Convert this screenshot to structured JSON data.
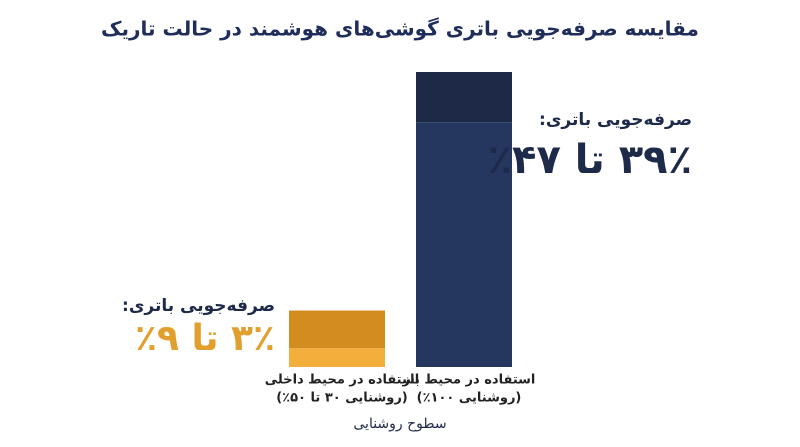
{
  "chart_data": {
    "type": "range-bar",
    "title": "مقایسه صرفه‌جویی باتری گوشی‌های هوشمند در حالت تاریک",
    "x_label": "سطوح روشنایی",
    "categories": [
      "استفاده در محیط داخلی",
      "استفاده در محیط باز"
    ],
    "category_notes": [
      "(روشنایی ۳۰ تا ۵۰٪)",
      "(روشنایی ۱۰۰٪)"
    ],
    "low": [
      3,
      39
    ],
    "high": [
      9,
      47
    ],
    "range_labels": [
      "۳٪ تا ۹٪",
      "۳۹٪ تا ۴۷٪"
    ],
    "annotations": [
      "صرفه‌جویی باتری:",
      "صرفه‌جویی باتری:"
    ],
    "colors": [
      {
        "low": "#f4ae3c",
        "high": "#d28c20",
        "label": "#e1a02e"
      },
      {
        "low": "#26375f",
        "high": "#1d2947",
        "label": "#1e2a4a"
      }
    ]
  }
}
